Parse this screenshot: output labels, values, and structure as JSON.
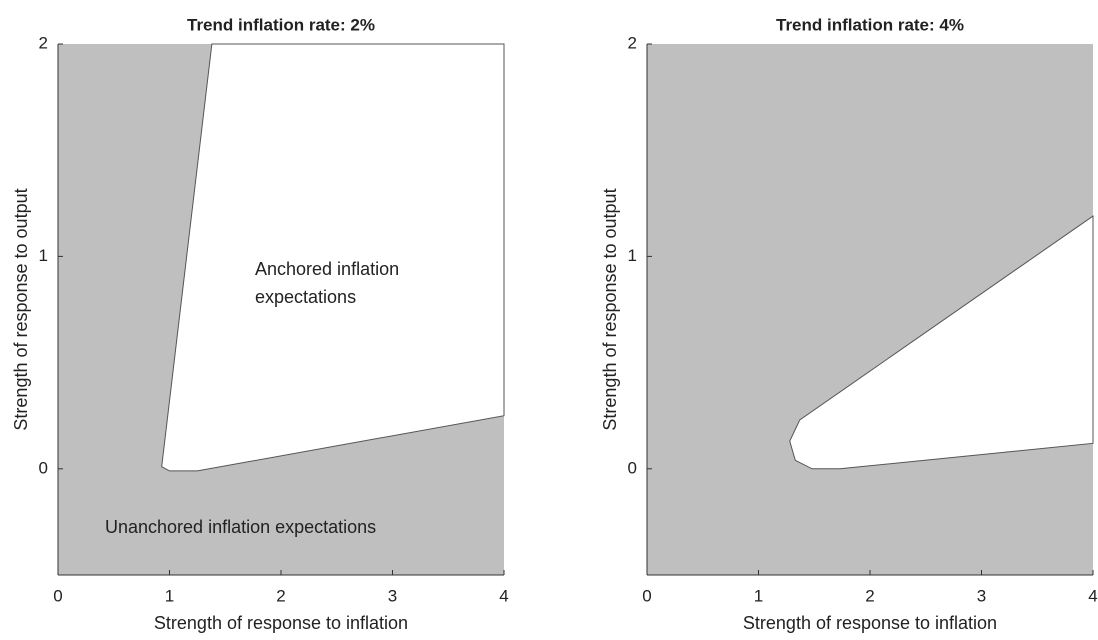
{
  "chart_data": [
    {
      "type": "region",
      "title": "Trend inflation rate: 2%",
      "xlabel": "Strength of response to inflation",
      "ylabel": "Strength of response to output",
      "xlim": [
        0,
        4
      ],
      "ylim": [
        -0.5,
        2
      ],
      "xticks": [
        0,
        1,
        2,
        3,
        4
      ],
      "yticks": [
        0,
        1,
        2
      ],
      "background_color": "#bfbfbf",
      "region_color": "#ffffff",
      "boundary": {
        "x": [
          1.38,
          0.93,
          1.0,
          1.25,
          4,
          4
        ],
        "y": [
          2,
          0.01,
          -0.01,
          -0.01,
          0.25,
          2
        ]
      },
      "annotations": [
        "Anchored inflation",
        "expectations",
        "Unanchored inflation expectations"
      ]
    },
    {
      "type": "region",
      "title": "Trend inflation rate: 4%",
      "xlabel": "Strength of response to inflation",
      "ylabel": "Strength of response to output",
      "xlim": [
        0,
        4
      ],
      "ylim": [
        -0.5,
        2
      ],
      "xticks": [
        0,
        1,
        2,
        3,
        4
      ],
      "yticks": [
        0,
        1,
        2
      ],
      "background_color": "#bfbfbf",
      "region_color": "#ffffff",
      "boundary": {
        "x": [
          4,
          1.37,
          1.28,
          1.33,
          1.48,
          1.73,
          4
        ],
        "y": [
          1.19,
          0.23,
          0.13,
          0.04,
          0.0,
          0.0,
          0.12
        ]
      }
    }
  ]
}
